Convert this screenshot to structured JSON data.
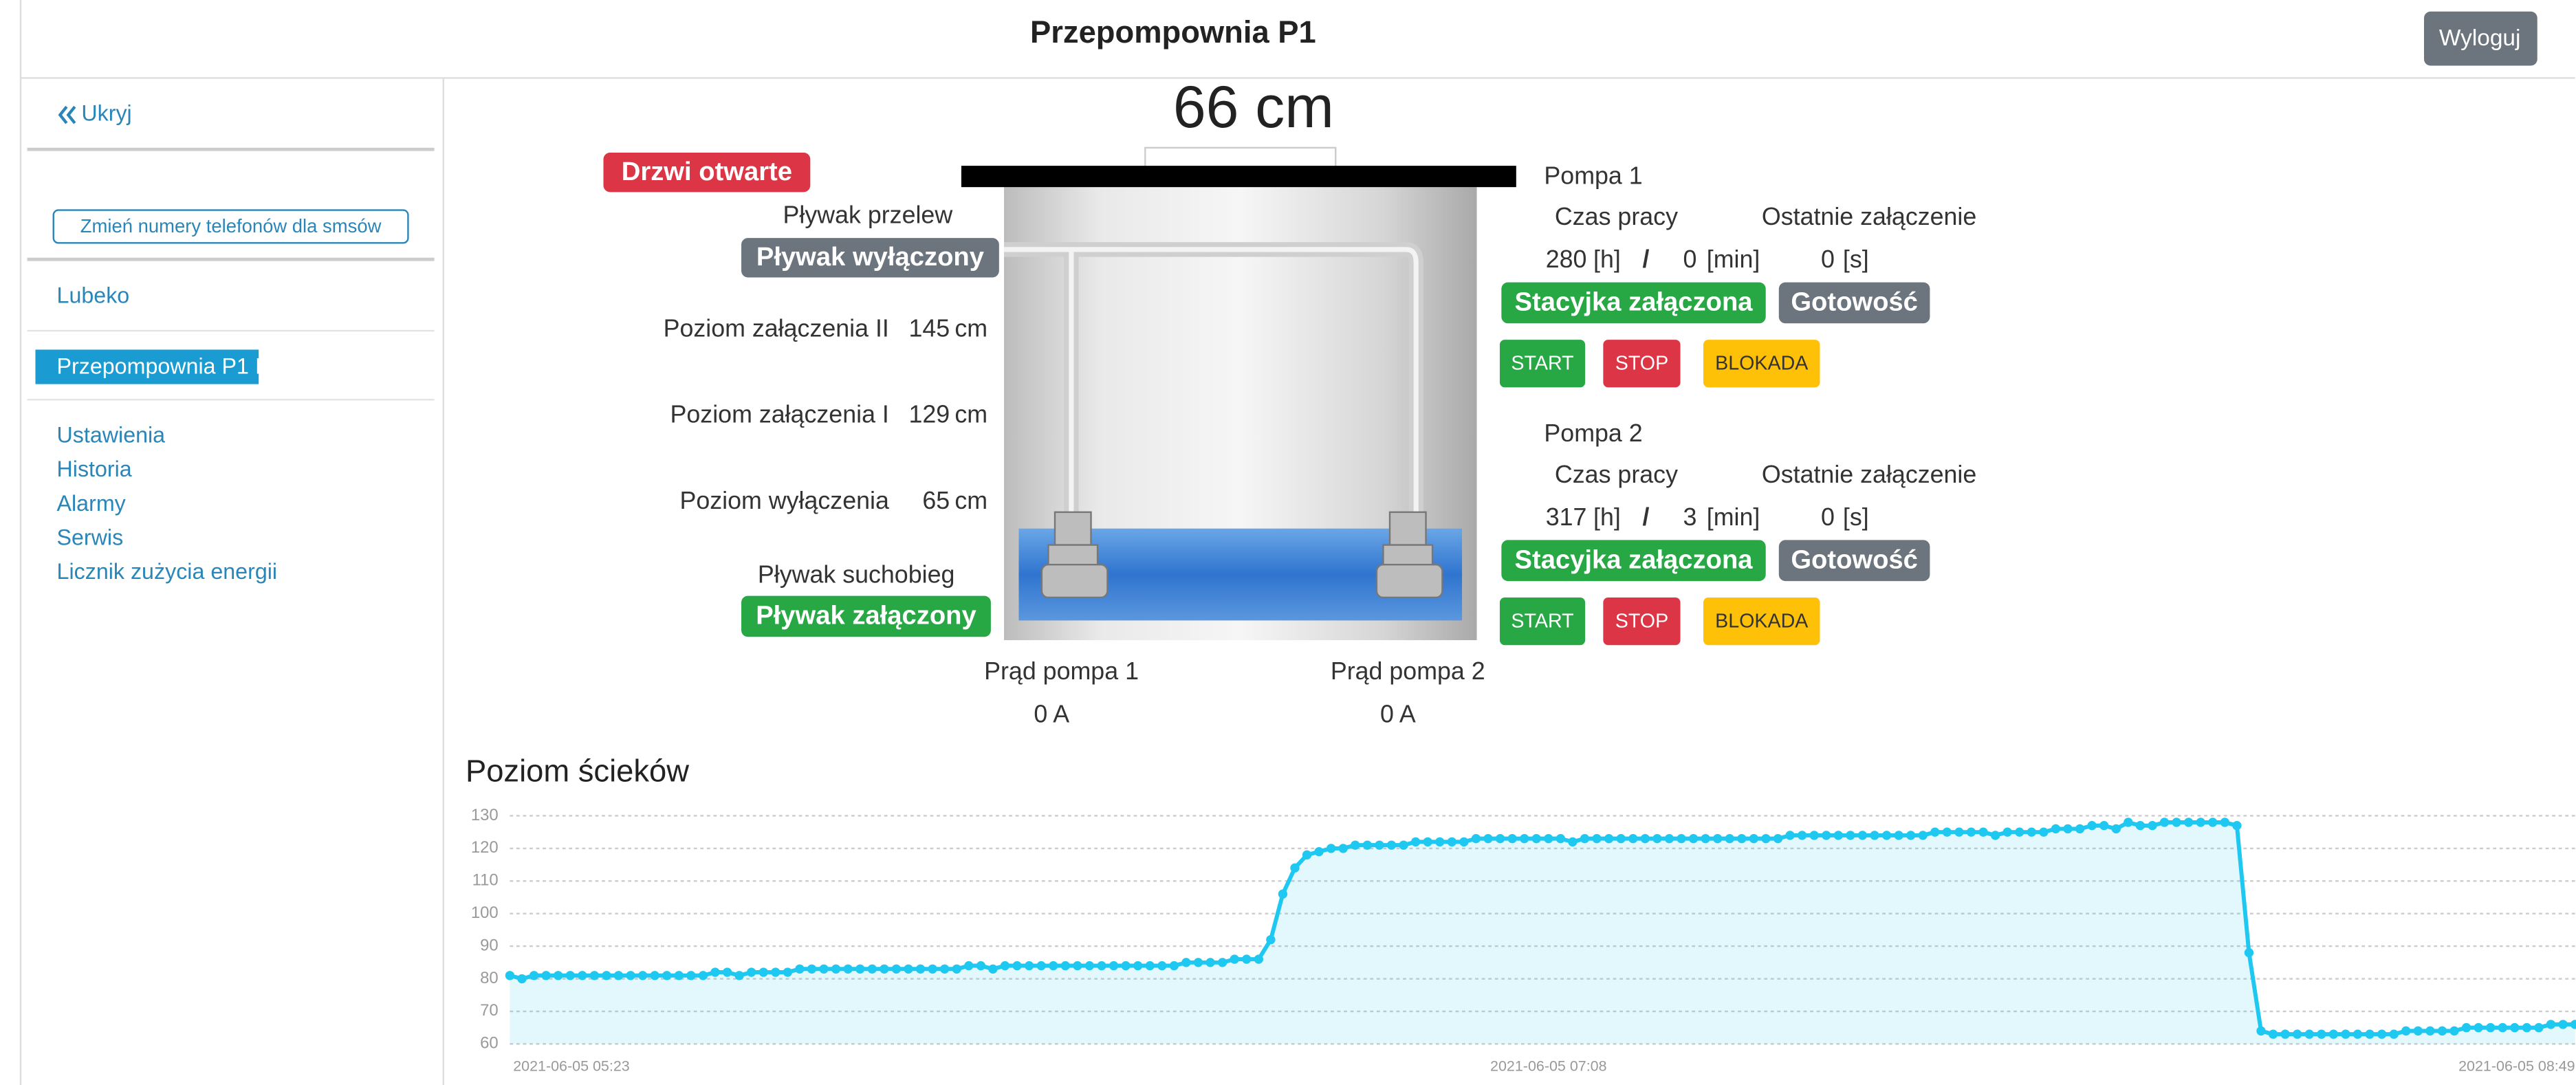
{
  "header": {
    "title": "Przepompownia P1",
    "logout": "Wyloguj"
  },
  "sidebar": {
    "hide": "Ukryj",
    "sms_button": "Zmień numery telefonów dla smsów",
    "client": "Lubeko",
    "active_station": "Przepompownia P1 I",
    "links": [
      "Ustawienia",
      "Historia",
      "Alarmy",
      "Serwis",
      "Licznik zużycia energii"
    ]
  },
  "station": {
    "level": "66 cm",
    "door": "Drzwi otwarte",
    "overflow_float": {
      "label": "Pływak przelew",
      "state": "Pływak wyłączony"
    },
    "levels": [
      {
        "label": "Poziom załączenia II",
        "value": 145,
        "unit": "cm"
      },
      {
        "label": "Poziom załączenia I",
        "value": 129,
        "unit": "cm"
      },
      {
        "label": "Poziom wyłączenia",
        "value": 65,
        "unit": "cm"
      }
    ],
    "dry_float": {
      "label": "Pływak suchobieg",
      "state": "Pływak załączony"
    },
    "currents": [
      {
        "label": "Prąd pompa 1",
        "value": "0 A"
      },
      {
        "label": "Prąd pompa 2",
        "value": "0 A"
      }
    ]
  },
  "pumps": [
    {
      "name": "Pompa 1",
      "runtime_label": "Czas pracy",
      "last_on_label": "Ostatnie załączenie",
      "hours": 280,
      "hours_unit": "[h]",
      "separator": "/",
      "minutes": 0,
      "minutes_unit": "[min]",
      "last_on": 0,
      "last_on_unit": "[s]",
      "key_switch": "Stacyjka załączona",
      "ready": "Gotowość",
      "buttons": [
        "START",
        "STOP",
        "BLOKADA"
      ]
    },
    {
      "name": "Pompa 2",
      "runtime_label": "Czas pracy",
      "last_on_label": "Ostatnie załączenie",
      "hours": 317,
      "hours_unit": "[h]",
      "separator": "/",
      "minutes": 3,
      "minutes_unit": "[min]",
      "last_on": 0,
      "last_on_unit": "[s]",
      "key_switch": "Stacyjka załączona",
      "ready": "Gotowość",
      "buttons": [
        "START",
        "STOP",
        "BLOKADA"
      ]
    }
  ],
  "chart": {
    "type": "line",
    "title": "Poziom ścieków",
    "color": "#1ec8f0",
    "grid": true,
    "ylim": [
      60,
      130
    ],
    "yticks": [
      60,
      70,
      80,
      90,
      100,
      110,
      120,
      130
    ],
    "categories": [
      "2021-06-05 05:23",
      null,
      null,
      null,
      null,
      null,
      null,
      null,
      null,
      null,
      null,
      null,
      null,
      null,
      null,
      null,
      null,
      null,
      null,
      null,
      null,
      null,
      null,
      null,
      null,
      null,
      null,
      null,
      null,
      null,
      null,
      null,
      null,
      null,
      null,
      null,
      null,
      null,
      null,
      null,
      null,
      null,
      null,
      null,
      null,
      null,
      null,
      null,
      null,
      null,
      null,
      null,
      null,
      null,
      null,
      null,
      null,
      null,
      null,
      null,
      null,
      null,
      null,
      null,
      null,
      null,
      null,
      null,
      null,
      null,
      null,
      null,
      null,
      null,
      null,
      null,
      null,
      null,
      null,
      null,
      null,
      null,
      null,
      null,
      null,
      null,
      "2021-06-05 07:08",
      null,
      null,
      null,
      null,
      null,
      null,
      null,
      null,
      null,
      null,
      null,
      null,
      null,
      null,
      null,
      null,
      null,
      null,
      null,
      null,
      null,
      null,
      null,
      null,
      null,
      null,
      null,
      null,
      null,
      null,
      null,
      null,
      null,
      null,
      null,
      null,
      null,
      null,
      null,
      null,
      null,
      null,
      null,
      null,
      null,
      null,
      null,
      null,
      null,
      null,
      null,
      null,
      null,
      null,
      null,
      null,
      null,
      null,
      null,
      null,
      null,
      null,
      null,
      null,
      null,
      null,
      null,
      null,
      null,
      null,
      null,
      null,
      null,
      null,
      null,
      null,
      null,
      null,
      null,
      null,
      null,
      null,
      null,
      null,
      "2021-06-05 08:49"
    ],
    "values": [
      81,
      80,
      81,
      81,
      81,
      81,
      81,
      81,
      81,
      81,
      81,
      81,
      81,
      81,
      81,
      81,
      81,
      82,
      82,
      81,
      82,
      82,
      82,
      82,
      83,
      83,
      83,
      83,
      83,
      83,
      83,
      83,
      83,
      83,
      83,
      83,
      83,
      83,
      84,
      84,
      83,
      84,
      84,
      84,
      84,
      84,
      84,
      84,
      84,
      84,
      84,
      84,
      84,
      84,
      84,
      84,
      85,
      85,
      85,
      85,
      86,
      86,
      86,
      92,
      106,
      114,
      118,
      119,
      120,
      120,
      121,
      121,
      121,
      121,
      121,
      122,
      122,
      122,
      122,
      122,
      123,
      123,
      123,
      123,
      123,
      123,
      123,
      123,
      122,
      123,
      123,
      123,
      123,
      123,
      123,
      123,
      123,
      123,
      123,
      123,
      123,
      123,
      123,
      123,
      123,
      123,
      124,
      124,
      124,
      124,
      124,
      124,
      124,
      124,
      124,
      124,
      124,
      124,
      125,
      125,
      125,
      125,
      125,
      124,
      125,
      125,
      125,
      125,
      126,
      126,
      126,
      127,
      127,
      126,
      128,
      127,
      127,
      128,
      128,
      128,
      128,
      128,
      128,
      127,
      88,
      64,
      63,
      63,
      63,
      63,
      63,
      63,
      63,
      63,
      63,
      63,
      63,
      64,
      64,
      64,
      64,
      64,
      65,
      65,
      65,
      65,
      65,
      65,
      65,
      66,
      66,
      66
    ]
  }
}
